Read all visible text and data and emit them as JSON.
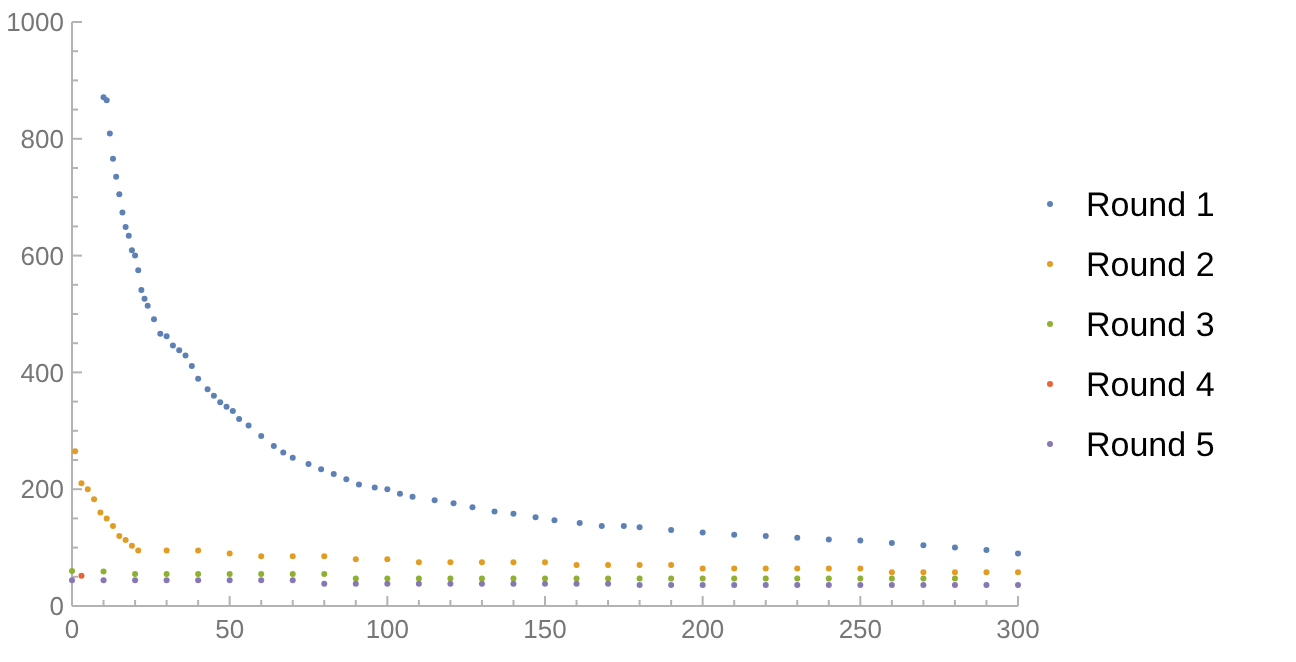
{
  "chart_data": {
    "type": "scatter",
    "marker": "circle",
    "legend": "right",
    "grid": false,
    "xlim": [
      0,
      300
    ],
    "ylim": [
      0,
      1000
    ],
    "xticks": [
      0,
      {
        "value": 10,
        "label": null
      },
      {
        "value": 20,
        "label": null
      },
      {
        "value": 30,
        "label": null
      },
      {
        "value": 40,
        "label": null
      },
      50,
      {
        "value": 60,
        "label": null
      },
      {
        "value": 70,
        "label": null
      },
      {
        "value": 80,
        "label": null
      },
      {
        "value": 90,
        "label": null
      },
      100,
      {
        "value": 110,
        "label": null
      },
      {
        "value": 120,
        "label": null
      },
      {
        "value": 130,
        "label": null
      },
      {
        "value": 140,
        "label": null
      },
      150,
      {
        "value": 160,
        "label": null
      },
      {
        "value": 170,
        "label": null
      },
      {
        "value": 180,
        "label": null
      },
      {
        "value": 190,
        "label": null
      },
      200,
      {
        "value": 210,
        "label": null
      },
      {
        "value": 220,
        "label": null
      },
      {
        "value": 230,
        "label": null
      },
      {
        "value": 240,
        "label": null
      },
      250,
      {
        "value": 260,
        "label": null
      },
      {
        "value": 270,
        "label": null
      },
      {
        "value": 280,
        "label": null
      },
      {
        "value": 290,
        "label": null
      },
      300
    ],
    "yticks": [
      0,
      {
        "value": 50,
        "label": null
      },
      {
        "value": 100,
        "label": null
      },
      {
        "value": 150,
        "label": null
      },
      200,
      {
        "value": 250,
        "label": null
      },
      {
        "value": 300,
        "label": null
      },
      {
        "value": 350,
        "label": null
      },
      400,
      {
        "value": 450,
        "label": null
      },
      {
        "value": 500,
        "label": null
      },
      {
        "value": 550,
        "label": null
      },
      600,
      {
        "value": 650,
        "label": null
      },
      {
        "value": 700,
        "label": null
      },
      {
        "value": 750,
        "label": null
      },
      800,
      {
        "value": 850,
        "label": null
      },
      {
        "value": 900,
        "label": null
      },
      {
        "value": 950,
        "label": null
      },
      1000
    ],
    "x": [
      0,
      10,
      20,
      30,
      40,
      50,
      60,
      70,
      80,
      90,
      100,
      110,
      120,
      130,
      140,
      150,
      160,
      170,
      180,
      190,
      200,
      210,
      220,
      230,
      240,
      250,
      260,
      270,
      280,
      290,
      300
    ],
    "series": [
      {
        "name": "Round 1",
        "color": "#5e81b5",
        "x": [
          10,
          11,
          12,
          13,
          14,
          15,
          16,
          17,
          18,
          19,
          20,
          21,
          22,
          23,
          24,
          26,
          28,
          30,
          32,
          34,
          36,
          38,
          40,
          43,
          45,
          47,
          49,
          51,
          53,
          56,
          60,
          64,
          67,
          70,
          75,
          79,
          83,
          87,
          91,
          96,
          100,
          104,
          108,
          115,
          121,
          127,
          134,
          140,
          147,
          153,
          161,
          168,
          175,
          180,
          190,
          200,
          210,
          220,
          230,
          240,
          250,
          260,
          270,
          280,
          290,
          300
        ],
        "values": [
          871,
          866,
          809,
          766,
          735,
          705,
          674,
          649,
          634,
          609,
          600,
          575,
          541,
          526,
          514,
          491,
          466,
          462,
          446,
          438,
          429,
          411,
          389,
          371,
          360,
          349,
          341,
          334,
          320,
          309,
          291,
          274,
          263,
          254,
          243,
          234,
          226,
          217,
          208,
          203,
          200,
          192,
          187,
          181,
          176,
          169,
          162,
          158,
          152,
          147,
          142,
          137,
          137,
          135,
          130,
          126,
          122,
          120,
          117,
          114,
          112,
          108,
          104,
          100,
          96,
          90
        ]
      },
      {
        "name": "Round 2",
        "color": "#e19c24",
        "x": [
          1,
          3,
          5,
          7,
          9,
          11,
          13,
          15,
          17,
          19,
          21,
          30,
          40,
          50,
          60,
          70,
          80,
          90,
          100,
          110,
          120,
          130,
          140,
          150,
          160,
          170,
          180,
          190,
          200,
          210,
          220,
          230,
          240,
          250,
          260,
          270,
          280,
          290,
          300
        ],
        "values": [
          265,
          210,
          200,
          183,
          160,
          150,
          137,
          120,
          113,
          103,
          95,
          95,
          95,
          90,
          85,
          85,
          85,
          80,
          80,
          75,
          75,
          75,
          75,
          75,
          70,
          70,
          70,
          70,
          64,
          64,
          64,
          64,
          64,
          64,
          58,
          58,
          58,
          58,
          58
        ]
      },
      {
        "name": "Round 3",
        "color": "#8fb032",
        "values": [
          60,
          59,
          55,
          55,
          55,
          55,
          55,
          55,
          55,
          47,
          47,
          47,
          47,
          47,
          47,
          47,
          47,
          47,
          47,
          47,
          47,
          47,
          47,
          47,
          47,
          47,
          47,
          47,
          47,
          null,
          null
        ]
      },
      {
        "name": "Round 4",
        "color": "#eb6235",
        "x": [
          3
        ],
        "values": [
          52
        ]
      },
      {
        "name": "Round 5",
        "color": "#8778b3",
        "values": [
          44,
          44,
          44,
          44,
          44,
          44,
          44,
          44,
          38,
          38,
          38,
          38,
          38,
          38,
          38,
          38,
          38,
          38,
          36,
          36,
          36,
          36,
          36,
          36,
          36,
          36,
          36,
          36,
          36,
          36,
          36
        ]
      }
    ]
  }
}
